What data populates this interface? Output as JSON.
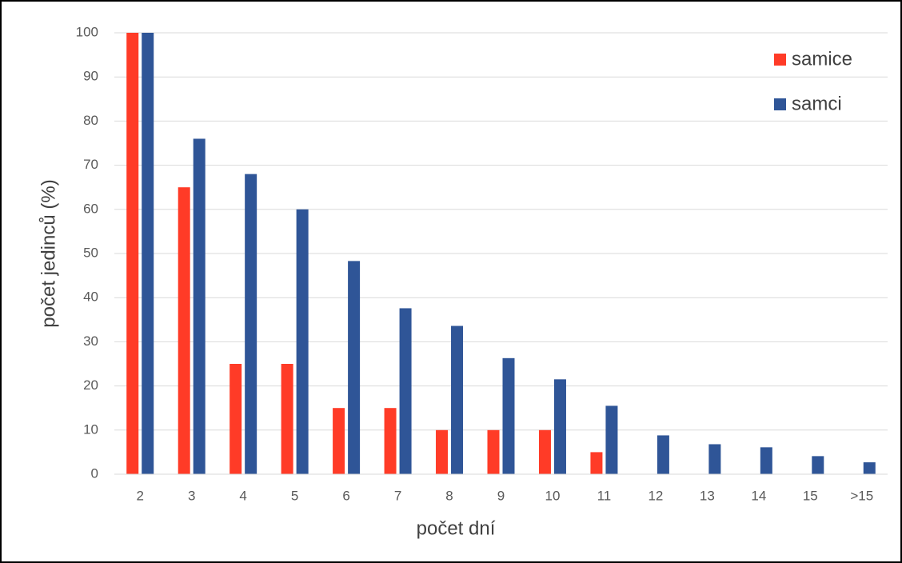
{
  "chart_data": {
    "type": "bar",
    "x_label": "počet dní",
    "y_label": "počet jedinců (%)",
    "categories": [
      "2",
      "3",
      "4",
      "5",
      "6",
      "7",
      "8",
      "9",
      "10",
      "11",
      "12",
      "13",
      "14",
      "15",
      ">15"
    ],
    "series": [
      {
        "name": "samice",
        "color": "#ff3b27",
        "values": [
          100,
          65,
          25,
          25,
          15,
          15,
          10,
          10,
          10,
          5,
          0,
          0,
          0,
          0,
          0
        ]
      },
      {
        "name": "samci",
        "color": "#2f5597",
        "values": [
          100,
          76,
          68,
          60,
          48.3,
          37.6,
          33.6,
          26.3,
          21.5,
          15.5,
          8.8,
          6.8,
          6.1,
          4.1,
          2.7
        ]
      }
    ],
    "ylim": [
      0,
      100
    ],
    "yticks": [
      0,
      10,
      20,
      30,
      40,
      50,
      60,
      70,
      80,
      90,
      100
    ],
    "grid": true,
    "legend": "top-right"
  }
}
